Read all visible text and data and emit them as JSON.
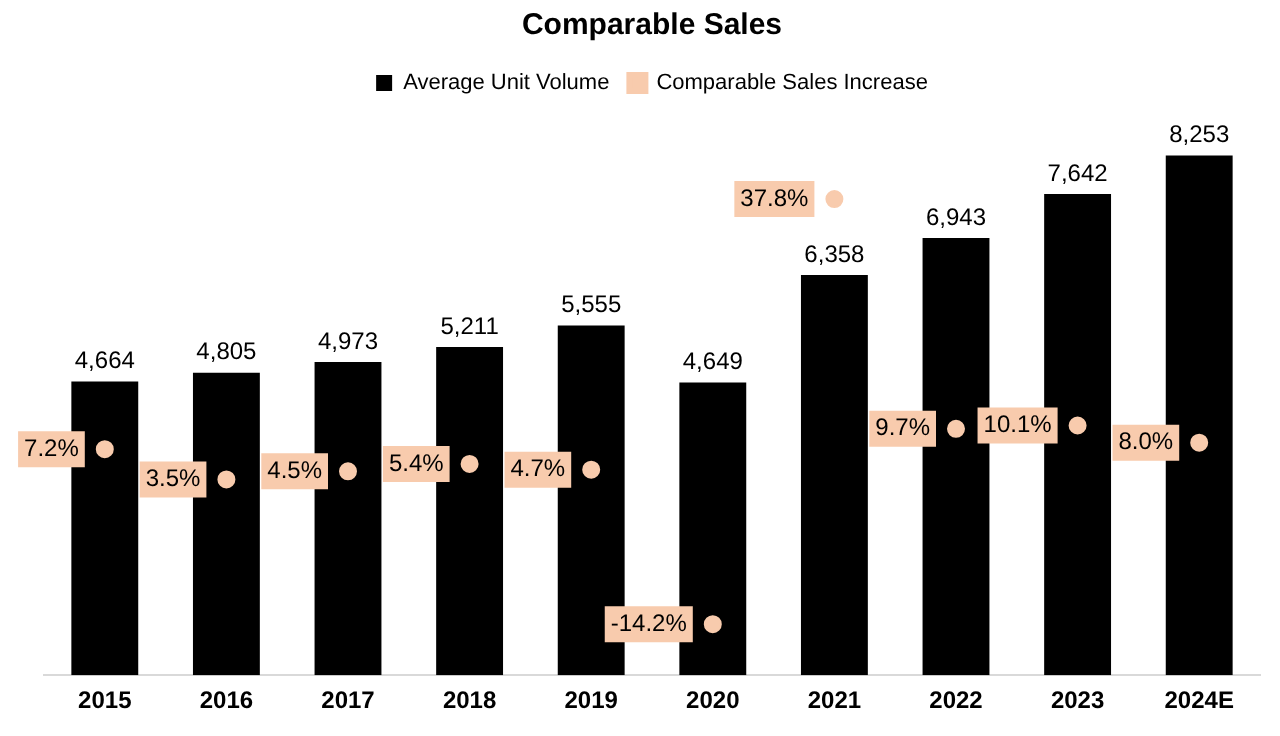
{
  "chart_data": {
    "type": "bar",
    "title": "Comparable Sales",
    "categories": [
      "2015",
      "2016",
      "2017",
      "2018",
      "2019",
      "2020",
      "2021",
      "2022",
      "2023",
      "2024E"
    ],
    "series": [
      {
        "name": "Average Unit Volume",
        "color": "#000000",
        "values": [
          4664,
          4805,
          4973,
          5211,
          5555,
          4649,
          6358,
          6943,
          7642,
          8253
        ],
        "value_labels": [
          "4,664",
          "4,805",
          "4,973",
          "5,211",
          "5,555",
          "4,649",
          "6,358",
          "6,943",
          "7,642",
          "8,253"
        ]
      },
      {
        "type": "scatter",
        "name": "Comparable Sales Increase",
        "color": "#f8cbad",
        "axis": "y2",
        "marker": "circle",
        "values": [
          7.2,
          3.5,
          4.5,
          5.4,
          4.7,
          -14.2,
          37.8,
          9.7,
          10.1,
          8.0
        ],
        "value_labels": [
          "7.2%",
          "3.5%",
          "4.5%",
          "5.4%",
          "4.7%",
          "-14.2%",
          "37.8%",
          "9.7%",
          "10.1%",
          "8.0%"
        ]
      }
    ],
    "legend": "top",
    "grid": false,
    "tick_labels": "x"
  }
}
